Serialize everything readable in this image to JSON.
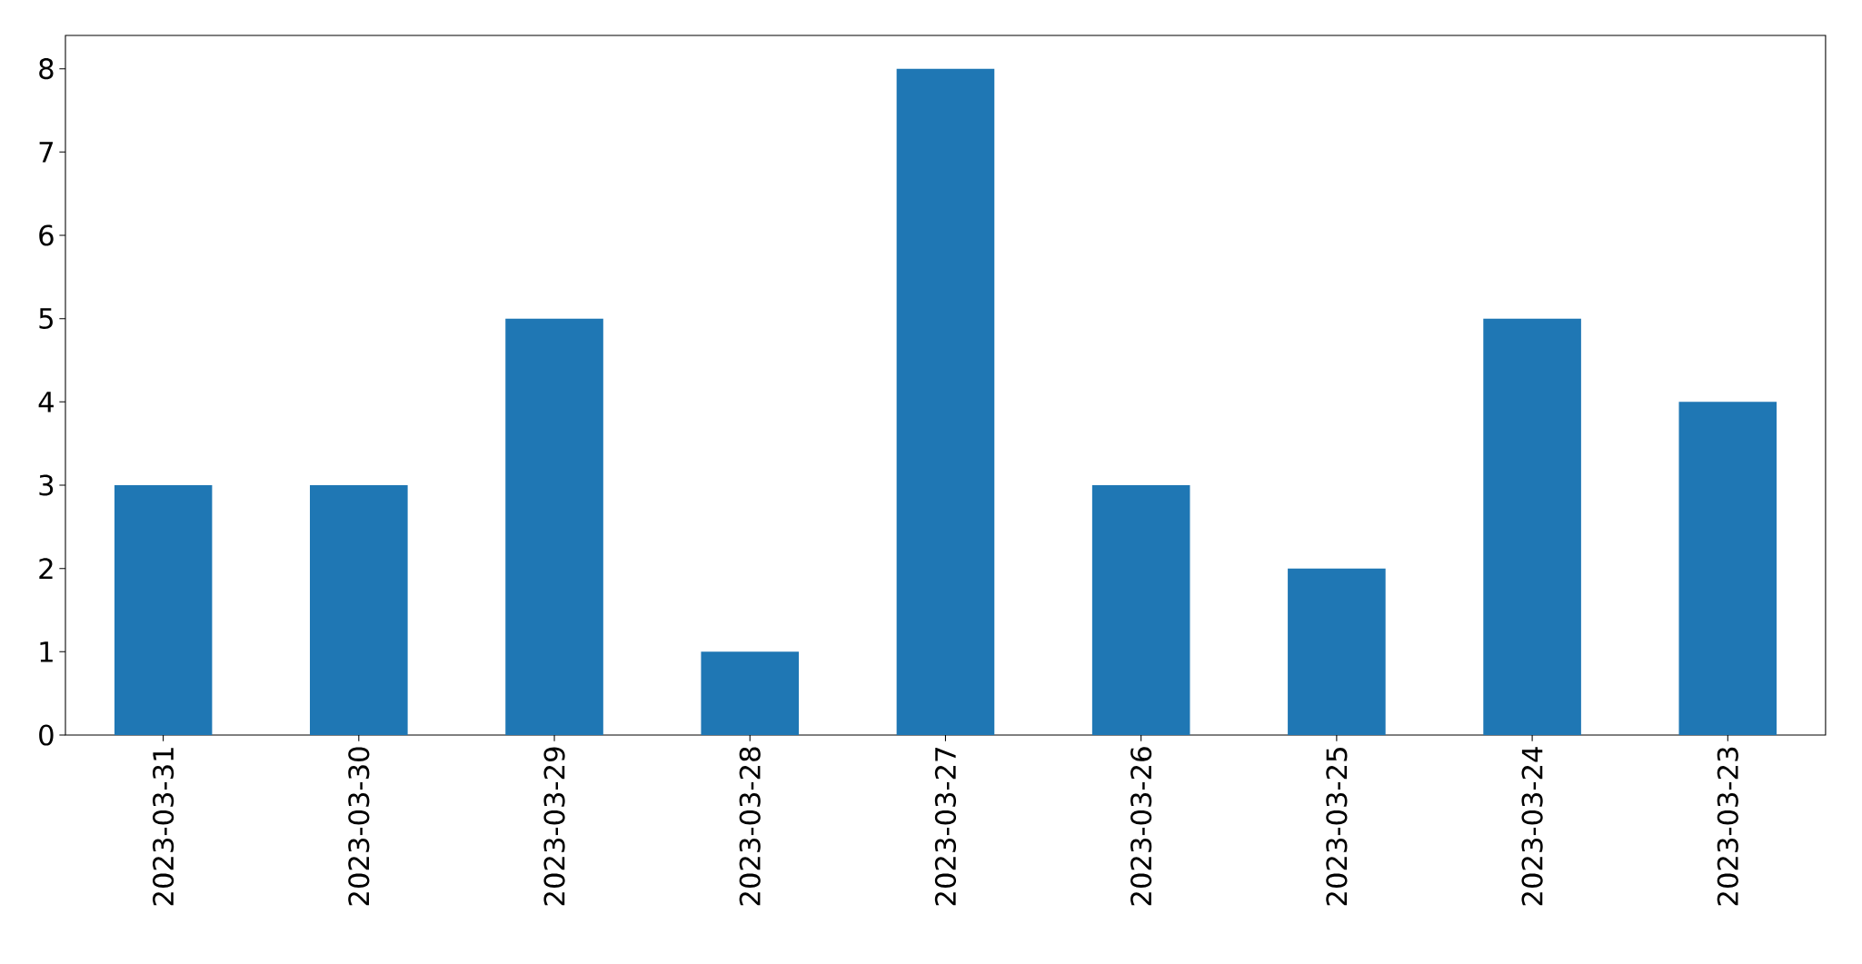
{
  "chart_data": {
    "type": "bar",
    "categories": [
      "2023-03-31",
      "2023-03-30",
      "2023-03-29",
      "2023-03-28",
      "2023-03-27",
      "2023-03-26",
      "2023-03-25",
      "2023-03-24",
      "2023-03-23"
    ],
    "values": [
      3,
      3,
      5,
      1,
      8,
      3,
      2,
      5,
      4
    ],
    "color": "#1f77b4",
    "ylim": [
      0,
      8.4
    ],
    "yticks": [
      0,
      1,
      2,
      3,
      4,
      5,
      6,
      7,
      8
    ]
  }
}
